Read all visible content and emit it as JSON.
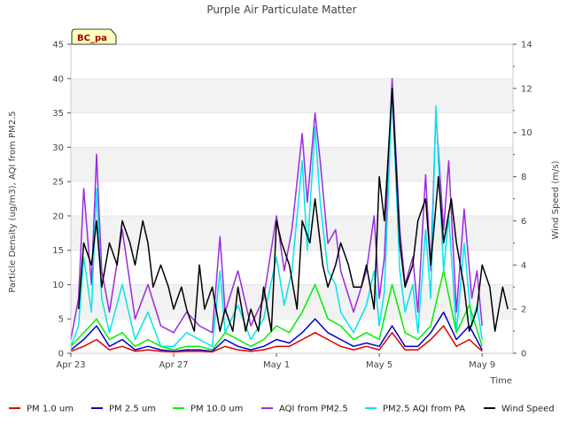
{
  "chart_data": {
    "type": "line",
    "title": "Purple Air Particulate Matter",
    "badge": "BC_pa",
    "xlabel": "Time",
    "ylabel": "Particle Density (ug/m3), AQI from PM2.5",
    "y2label": "Wind Speed (m/s)",
    "xlim": [
      0,
      17.2
    ],
    "ylim": [
      0,
      45
    ],
    "y2lim": [
      0,
      14
    ],
    "x_ticks": [
      {
        "value": 0,
        "label": "Apr 23"
      },
      {
        "value": 4,
        "label": "Apr 27"
      },
      {
        "value": 8,
        "label": "May 1"
      },
      {
        "value": 12,
        "label": "May 5"
      },
      {
        "value": 16,
        "label": "May 9"
      }
    ],
    "y_ticks": [
      0,
      5,
      10,
      15,
      20,
      25,
      30,
      35,
      40,
      45
    ],
    "y2_ticks": [
      0,
      2,
      4,
      6,
      8,
      10,
      12,
      14
    ],
    "series": [
      {
        "name": "AQI from PM2.5",
        "color": "#9a2be2",
        "axis": "left",
        "x": [
          0,
          0.3,
          0.5,
          0.8,
          1.0,
          1.2,
          1.5,
          2.0,
          2.5,
          3.0,
          3.5,
          4.0,
          4.5,
          5.0,
          5.5,
          5.8,
          6.0,
          6.5,
          7.0,
          7.5,
          8.0,
          8.3,
          8.6,
          9.0,
          9.2,
          9.5,
          9.7,
          10.0,
          10.3,
          10.5,
          11.0,
          11.5,
          11.8,
          12.0,
          12.2,
          12.5,
          12.8,
          13.0,
          13.3,
          13.5,
          13.8,
          14.0,
          14.2,
          14.5,
          14.7,
          15.0,
          15.3,
          15.6,
          15.8,
          16.0
        ],
        "values": [
          2,
          8,
          24,
          10,
          29,
          12,
          6,
          18,
          5,
          10,
          4,
          3,
          6,
          4,
          3,
          17,
          6,
          12,
          4,
          8,
          20,
          12,
          18,
          32,
          22,
          35,
          28,
          16,
          18,
          12,
          6,
          12,
          20,
          8,
          14,
          40,
          18,
          10,
          14,
          6,
          26,
          12,
          35,
          18,
          28,
          6,
          21,
          8,
          12,
          4
        ]
      },
      {
        "name": "PM2.5 AQI from PA",
        "color": "#00e5ee",
        "axis": "left",
        "x": [
          0,
          0.3,
          0.5,
          0.8,
          1.0,
          1.2,
          1.5,
          2.0,
          2.5,
          3.0,
          3.5,
          4.0,
          4.5,
          5.0,
          5.5,
          5.8,
          6.0,
          6.5,
          7.0,
          7.5,
          8.0,
          8.3,
          8.6,
          9.0,
          9.2,
          9.5,
          9.7,
          10.0,
          10.3,
          10.5,
          11.0,
          11.5,
          11.8,
          12.0,
          12.2,
          12.5,
          12.8,
          13.0,
          13.3,
          13.5,
          13.8,
          14.0,
          14.2,
          14.5,
          14.7,
          15.0,
          15.3,
          15.6,
          15.8,
          16.0
        ],
        "values": [
          1,
          4,
          14,
          6,
          24,
          8,
          3,
          10,
          2,
          6,
          1,
          1,
          3,
          2,
          1,
          12,
          3,
          7,
          2,
          5,
          14,
          7,
          12,
          28,
          15,
          33,
          22,
          12,
          10,
          6,
          3,
          7,
          12,
          4,
          9,
          38,
          12,
          6,
          10,
          3,
          18,
          8,
          36,
          12,
          20,
          3,
          16,
          4,
          7,
          2
        ]
      },
      {
        "name": "PM 10.0 um",
        "color": "#00ee00",
        "axis": "left",
        "x": [
          0,
          0.5,
          1.0,
          1.5,
          2.0,
          2.5,
          3.0,
          3.5,
          4.0,
          4.5,
          5.0,
          5.5,
          6.0,
          6.5,
          7.0,
          7.5,
          8.0,
          8.5,
          9.0,
          9.5,
          10.0,
          10.5,
          11.0,
          11.5,
          12.0,
          12.5,
          13.0,
          13.5,
          14.0,
          14.5,
          15.0,
          15.5,
          16.0
        ],
        "values": [
          1,
          3,
          5,
          2,
          3,
          1,
          2,
          1,
          0.5,
          1,
          1,
          0.5,
          3,
          2,
          1,
          2,
          4,
          3,
          6,
          10,
          5,
          4,
          2,
          3,
          2,
          10,
          3,
          2,
          4,
          12,
          3,
          7,
          1
        ]
      },
      {
        "name": "PM 2.5 um",
        "color": "#0000cd",
        "axis": "left",
        "x": [
          0,
          0.5,
          1.0,
          1.5,
          2.0,
          2.5,
          3.0,
          3.5,
          4.0,
          4.5,
          5.0,
          5.5,
          6.0,
          6.5,
          7.0,
          7.5,
          8.0,
          8.5,
          9.0,
          9.5,
          10.0,
          10.5,
          11.0,
          11.5,
          12.0,
          12.5,
          13.0,
          13.5,
          14.0,
          14.5,
          15.0,
          15.5,
          16.0
        ],
        "values": [
          0.5,
          2,
          4,
          1,
          2,
          0.5,
          1,
          0.5,
          0.3,
          0.5,
          0.5,
          0.3,
          2,
          1,
          0.5,
          1,
          2,
          1.5,
          3,
          5,
          3,
          2,
          1,
          1.5,
          1,
          4,
          1,
          1,
          3,
          6,
          2,
          4,
          0.5
        ]
      },
      {
        "name": "PM 1.0 um",
        "color": "#dd0000",
        "axis": "left",
        "x": [
          0,
          0.5,
          1.0,
          1.5,
          2.0,
          2.5,
          3.0,
          3.5,
          4.0,
          4.5,
          5.0,
          5.5,
          6.0,
          6.5,
          7.0,
          7.5,
          8.0,
          8.5,
          9.0,
          9.5,
          10.0,
          10.5,
          11.0,
          11.5,
          12.0,
          12.5,
          13.0,
          13.5,
          14.0,
          14.5,
          15.0,
          15.5,
          16.0
        ],
        "values": [
          0.3,
          1,
          2,
          0.5,
          1,
          0.3,
          0.5,
          0.3,
          0.2,
          0.3,
          0.3,
          0.2,
          1,
          0.5,
          0.3,
          0.5,
          1,
          1,
          2,
          3,
          2,
          1,
          0.5,
          1,
          0.5,
          3,
          0.5,
          0.5,
          2,
          4,
          1,
          2,
          0.3
        ]
      },
      {
        "name": "Wind Speed",
        "color": "#000000",
        "axis": "right",
        "x": [
          0.3,
          0.5,
          0.8,
          1.0,
          1.2,
          1.5,
          1.8,
          2.0,
          2.3,
          2.5,
          2.8,
          3.0,
          3.2,
          3.5,
          3.8,
          4.0,
          4.3,
          4.5,
          4.8,
          5.0,
          5.2,
          5.5,
          5.8,
          6.0,
          6.3,
          6.5,
          6.8,
          7.0,
          7.3,
          7.5,
          7.8,
          8.0,
          8.2,
          8.5,
          8.8,
          9.0,
          9.3,
          9.5,
          9.8,
          10.0,
          10.3,
          10.5,
          10.8,
          11.0,
          11.3,
          11.5,
          11.8,
          12.0,
          12.2,
          12.5,
          12.8,
          13.0,
          13.3,
          13.5,
          13.8,
          14.0,
          14.3,
          14.5,
          14.8,
          15.0,
          15.3,
          15.5,
          15.8,
          16.0,
          16.3,
          16.5,
          16.8,
          17.0
        ],
        "values": [
          2,
          5,
          4,
          6,
          3,
          5,
          4,
          6,
          5,
          4,
          6,
          5,
          3,
          4,
          3,
          2,
          3,
          2,
          1,
          4,
          2,
          3,
          1,
          2,
          1,
          3,
          1,
          2,
          1,
          3,
          1,
          6,
          5,
          4,
          2,
          6,
          5,
          7,
          4,
          3,
          4,
          5,
          4,
          3,
          3,
          4,
          2,
          8,
          6,
          12,
          5,
          3,
          4,
          6,
          7,
          4,
          8,
          5,
          7,
          5,
          3,
          1,
          2,
          4,
          3,
          1,
          3,
          2
        ]
      }
    ]
  },
  "legend": [
    {
      "name": "PM 1.0 um",
      "color": "#dd0000"
    },
    {
      "name": "PM 2.5 um",
      "color": "#0000cd"
    },
    {
      "name": "PM 10.0 um",
      "color": "#00ee00"
    },
    {
      "name": "AQI from PM2.5",
      "color": "#9a2be2"
    },
    {
      "name": "PM2.5 AQI from PA",
      "color": "#00e5ee"
    },
    {
      "name": "Wind Speed",
      "color": "#000000"
    }
  ]
}
